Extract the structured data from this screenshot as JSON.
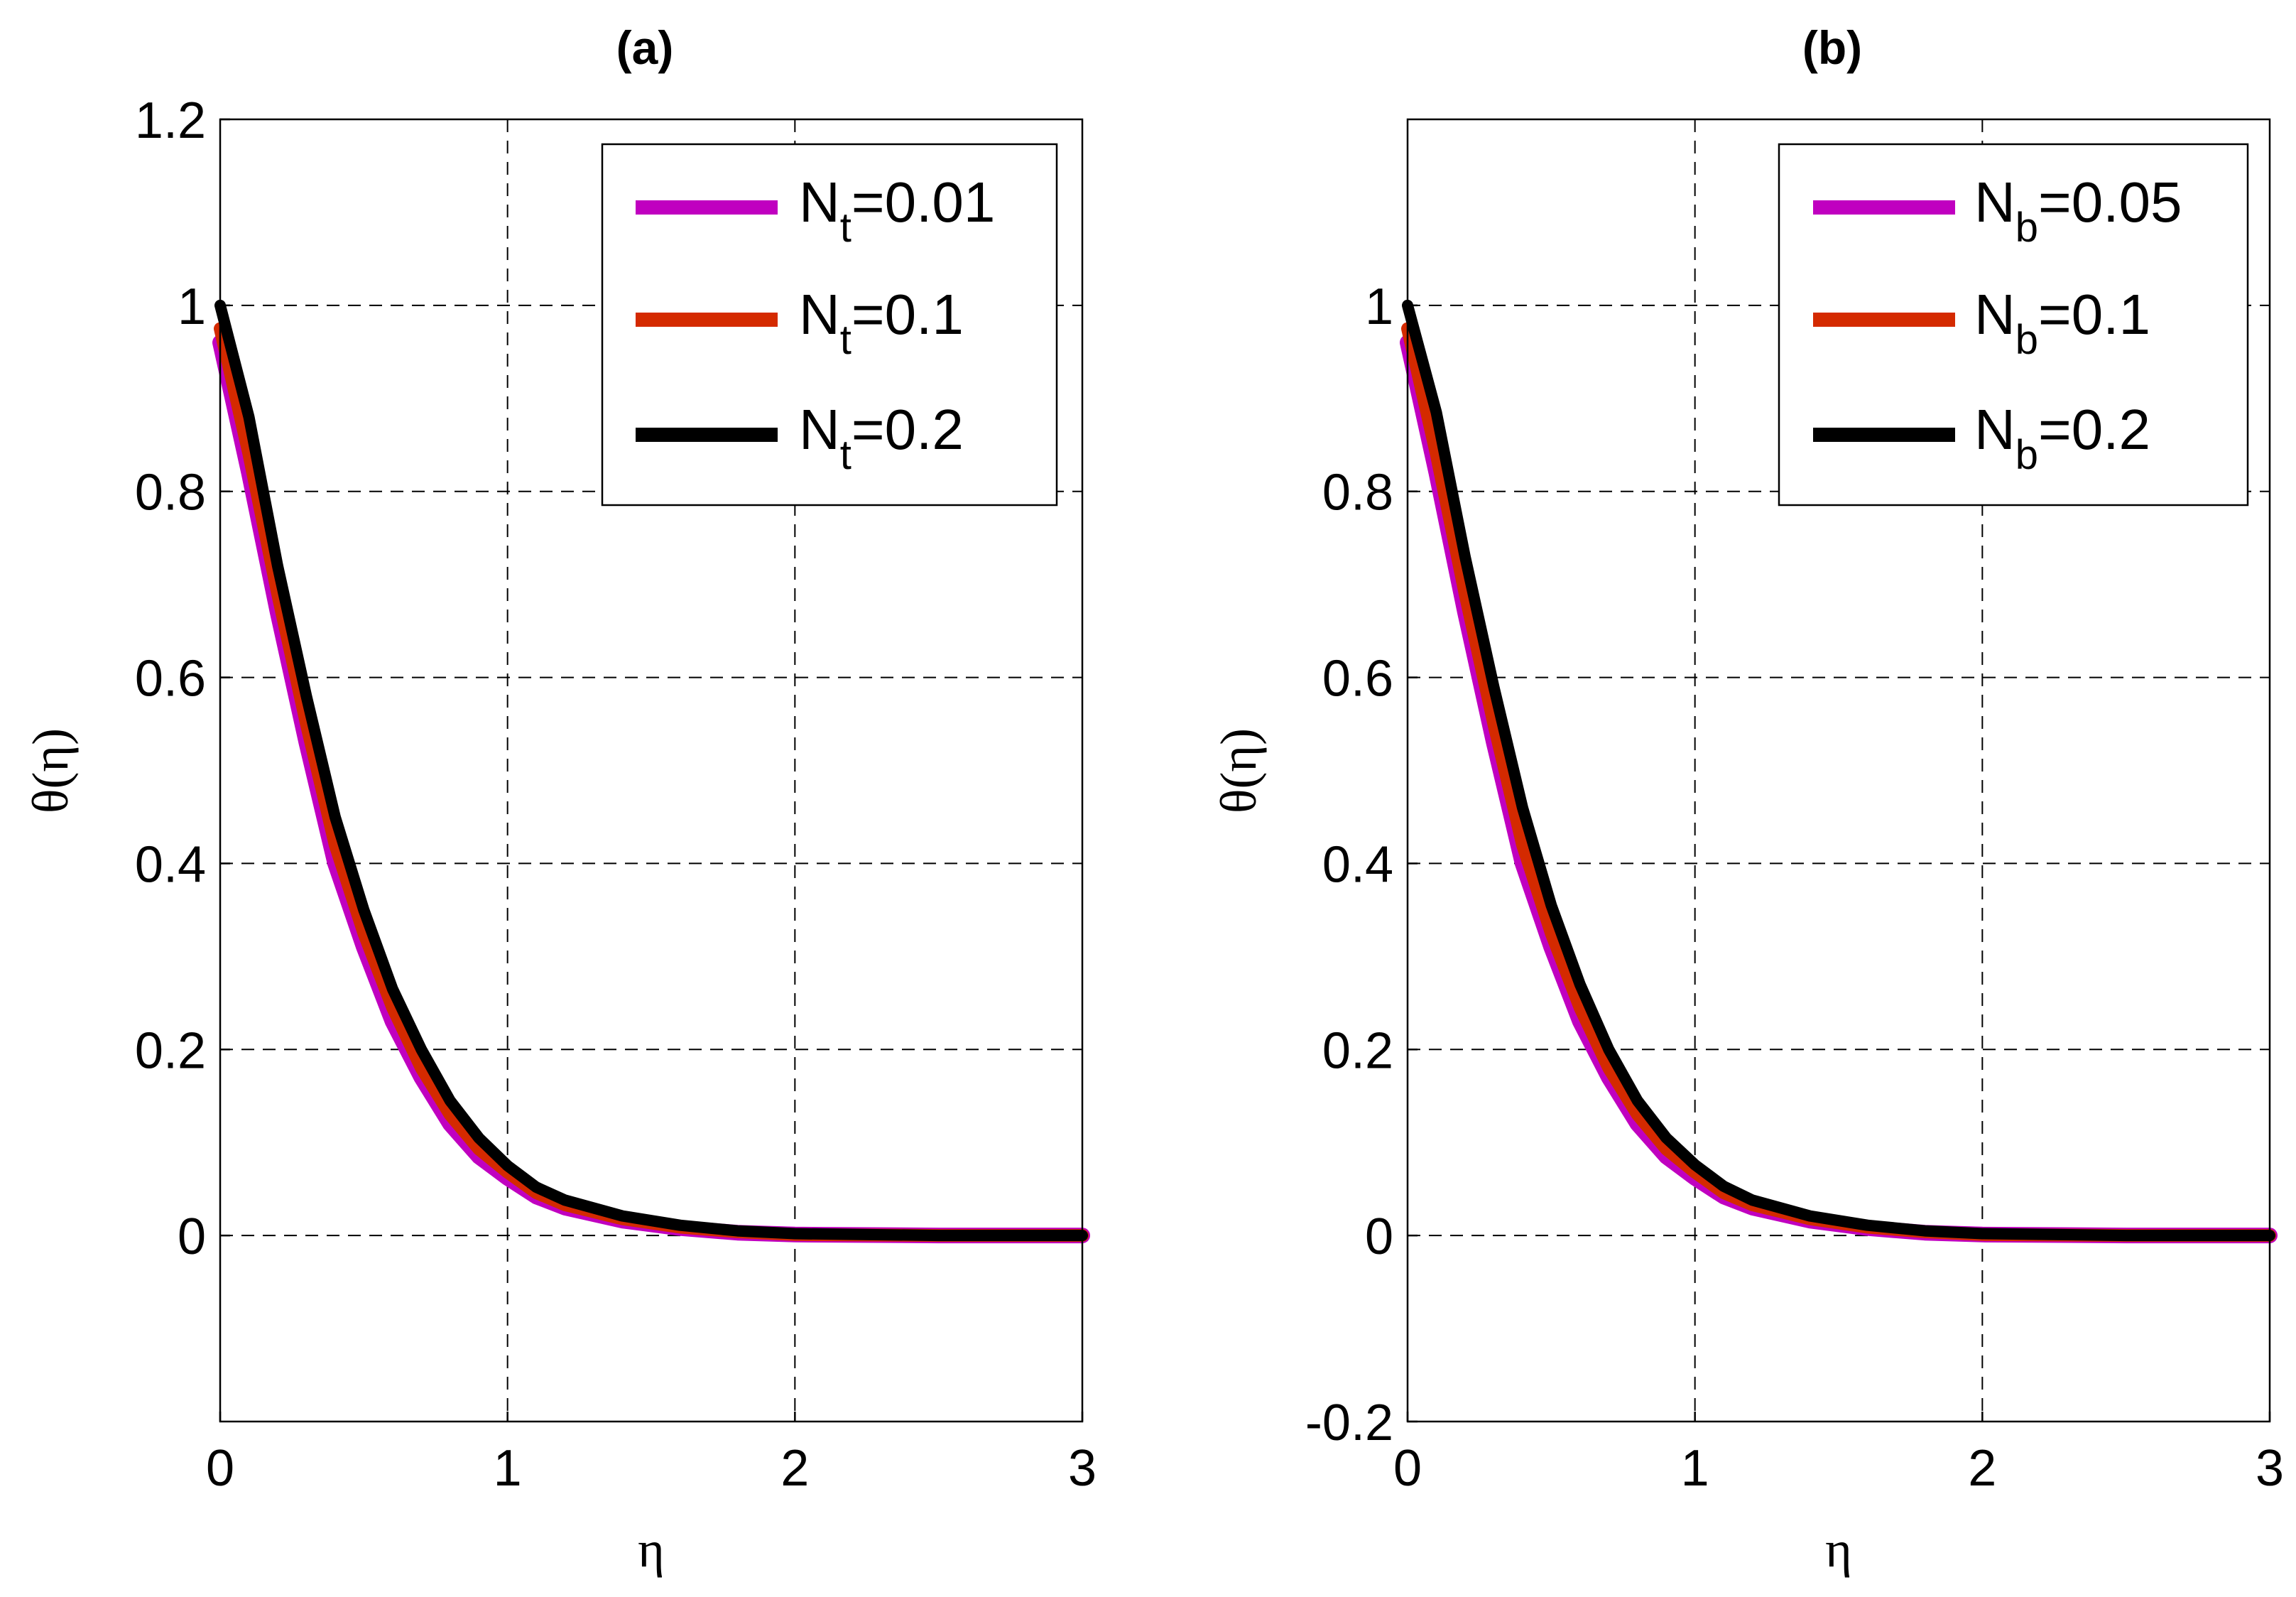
{
  "colors": {
    "magenta": "#c000c0",
    "red": "#d42a00",
    "black": "#000000"
  },
  "chart_data": [
    {
      "type": "line",
      "title": "(a)",
      "xlabel": "η",
      "ylabel": "θ(η)",
      "xlim": [
        0,
        3
      ],
      "ylim": [
        -0.2,
        1.2
      ],
      "xticks": [
        0,
        1,
        2,
        3
      ],
      "xtick_labels": [
        "0",
        "1",
        "2",
        "3"
      ],
      "yticks": [
        0,
        0.2,
        0.4,
        0.6,
        0.8,
        1,
        1.2
      ],
      "ytick_labels": [
        "0",
        "0.2",
        "0.4",
        "0.6",
        "0.8",
        "1",
        "1.2"
      ],
      "grid": true,
      "legend_position": "top-right",
      "series": [
        {
          "name": "N_t=0.01",
          "legend_main": "N",
          "legend_sub": "t",
          "legend_value": "=0.01",
          "color": "#c000c0",
          "x": [
            0,
            0.1,
            0.2,
            0.3,
            0.4,
            0.5,
            0.6,
            0.7,
            0.8,
            0.9,
            1.0,
            1.1,
            1.2,
            1.4,
            1.6,
            1.8,
            2.0,
            2.5,
            3.0
          ],
          "values": [
            0.96,
            0.82,
            0.67,
            0.53,
            0.4,
            0.31,
            0.23,
            0.17,
            0.12,
            0.085,
            0.062,
            0.042,
            0.03,
            0.016,
            0.008,
            0.003,
            0.001,
            0,
            0
          ]
        },
        {
          "name": "N_t=0.1",
          "legend_main": "N",
          "legend_sub": "t",
          "legend_value": "=0.1",
          "color": "#d42a00",
          "x": [
            0,
            0.1,
            0.2,
            0.3,
            0.4,
            0.5,
            0.6,
            0.7,
            0.8,
            0.9,
            1.0,
            1.1,
            1.2,
            1.4,
            1.6,
            1.8,
            2.0,
            2.5,
            3.0
          ],
          "values": [
            0.975,
            0.84,
            0.69,
            0.55,
            0.42,
            0.325,
            0.245,
            0.18,
            0.13,
            0.093,
            0.068,
            0.046,
            0.033,
            0.018,
            0.009,
            0.004,
            0.001,
            0,
            0
          ]
        },
        {
          "name": "N_t=0.2",
          "legend_main": "N",
          "legend_sub": "t",
          "legend_value": "=0.2",
          "color": "#000000",
          "x": [
            0,
            0.1,
            0.2,
            0.3,
            0.4,
            0.5,
            0.6,
            0.7,
            0.8,
            0.9,
            1.0,
            1.1,
            1.2,
            1.4,
            1.6,
            1.8,
            2.0,
            2.5,
            3.0
          ],
          "values": [
            1.0,
            0.88,
            0.72,
            0.58,
            0.45,
            0.35,
            0.265,
            0.2,
            0.145,
            0.105,
            0.075,
            0.052,
            0.038,
            0.021,
            0.011,
            0.005,
            0.002,
            0,
            0
          ]
        }
      ]
    },
    {
      "type": "line",
      "title": "(b)",
      "xlabel": "η",
      "ylabel": "θ(η)",
      "xlim": [
        0,
        3
      ],
      "ylim": [
        -0.2,
        1.2
      ],
      "xticks": [
        0,
        1,
        2,
        3
      ],
      "xtick_labels": [
        "0",
        "1",
        "2",
        "3"
      ],
      "yticks": [
        -0.2,
        0,
        0.2,
        0.4,
        0.6,
        0.8,
        1
      ],
      "ytick_labels": [
        "-0.2",
        "0",
        "0.2",
        "0.4",
        "0.6",
        "0.8",
        "1"
      ],
      "grid": true,
      "legend_position": "top-right",
      "series": [
        {
          "name": "N_b=0.05",
          "legend_main": "N",
          "legend_sub": "b",
          "legend_value": "=0.05",
          "color": "#c000c0",
          "x": [
            0,
            0.1,
            0.2,
            0.3,
            0.4,
            0.5,
            0.6,
            0.7,
            0.8,
            0.9,
            1.0,
            1.1,
            1.2,
            1.4,
            1.6,
            1.8,
            2.0,
            2.5,
            3.0
          ],
          "values": [
            0.96,
            0.82,
            0.67,
            0.53,
            0.4,
            0.31,
            0.23,
            0.17,
            0.12,
            0.085,
            0.062,
            0.042,
            0.03,
            0.016,
            0.008,
            0.003,
            0.001,
            0,
            0
          ]
        },
        {
          "name": "N_b=0.1",
          "legend_main": "N",
          "legend_sub": "b",
          "legend_value": "=0.1",
          "color": "#d42a00",
          "x": [
            0,
            0.1,
            0.2,
            0.3,
            0.4,
            0.5,
            0.6,
            0.7,
            0.8,
            0.9,
            1.0,
            1.1,
            1.2,
            1.4,
            1.6,
            1.8,
            2.0,
            2.5,
            3.0
          ],
          "values": [
            0.975,
            0.84,
            0.69,
            0.55,
            0.42,
            0.325,
            0.245,
            0.18,
            0.13,
            0.093,
            0.068,
            0.046,
            0.033,
            0.018,
            0.009,
            0.004,
            0.001,
            0,
            0
          ]
        },
        {
          "name": "N_b=0.2",
          "legend_main": "N",
          "legend_sub": "b",
          "legend_value": "=0.2",
          "color": "#000000",
          "x": [
            0,
            0.1,
            0.2,
            0.3,
            0.4,
            0.5,
            0.6,
            0.7,
            0.8,
            0.9,
            1.0,
            1.1,
            1.2,
            1.4,
            1.6,
            1.8,
            2.0,
            2.5,
            3.0
          ],
          "values": [
            1.0,
            0.885,
            0.73,
            0.59,
            0.46,
            0.355,
            0.27,
            0.2,
            0.145,
            0.105,
            0.076,
            0.053,
            0.038,
            0.021,
            0.011,
            0.005,
            0.002,
            0,
            0
          ]
        }
      ]
    }
  ]
}
